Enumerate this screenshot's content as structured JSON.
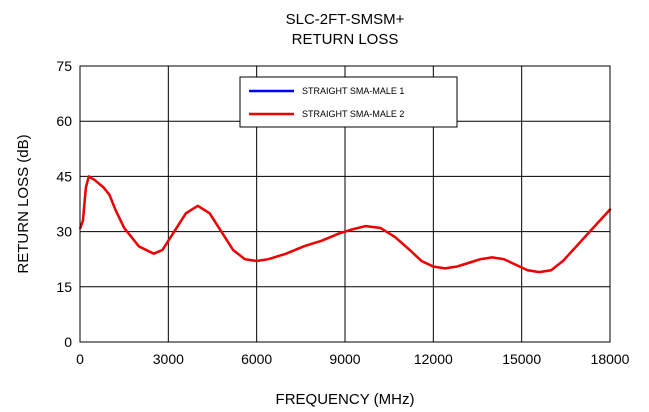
{
  "chart_data": {
    "type": "line",
    "title": "SLC-2FT-SMSM+",
    "subtitle": "RETURN LOSS",
    "xlabel": "FREQUENCY (MHz)",
    "ylabel": "RETURN LOSS (dB)",
    "xlim": [
      0,
      18000
    ],
    "ylim": [
      0,
      75
    ],
    "x_ticks": [
      "0",
      "3000",
      "6000",
      "9000",
      "12000",
      "15000",
      "18000"
    ],
    "y_ticks": [
      "0",
      "15",
      "30",
      "45",
      "60",
      "75"
    ],
    "grid": true,
    "legend_position": "top-center",
    "x": [
      10,
      100,
      200,
      300,
      500,
      800,
      1000,
      1200,
      1500,
      2000,
      2500,
      2800,
      3200,
      3600,
      4000,
      4400,
      4800,
      5200,
      5600,
      6000,
      6400,
      7000,
      7600,
      8200,
      8800,
      9200,
      9700,
      10200,
      10700,
      11200,
      11600,
      12000,
      12400,
      12800,
      13200,
      13600,
      14000,
      14400,
      14800,
      15200,
      15600,
      16000,
      16400,
      16800,
      17200,
      17600,
      18000
    ],
    "series": [
      {
        "name": "STRAIGHT SMA-MALE 1",
        "color": "#0000ff",
        "values": [
          31,
          33,
          42,
          45,
          44,
          42,
          40,
          36,
          31,
          26,
          24,
          25,
          30,
          35,
          37,
          35,
          30,
          25,
          22.5,
          22,
          22.5,
          24,
          26,
          27.5,
          29.5,
          30.5,
          31.5,
          31,
          28.5,
          25,
          22,
          20.5,
          20,
          20.5,
          21.5,
          22.5,
          23,
          22.5,
          21,
          19.5,
          19,
          19.5,
          22,
          25.5,
          29,
          32.5,
          36
        ]
      },
      {
        "name": "STRAIGHT SMA-MALE 2",
        "color": "#ee0000",
        "values": [
          31,
          33,
          42,
          45,
          44,
          42,
          40,
          36,
          31,
          26,
          24,
          25,
          30,
          35,
          37,
          35,
          30,
          25,
          22.5,
          22,
          22.5,
          24,
          26,
          27.5,
          29.5,
          30.5,
          31.5,
          31,
          28.5,
          25,
          22,
          20.5,
          20,
          20.5,
          21.5,
          22.5,
          23,
          22.5,
          21,
          19.5,
          19,
          19.5,
          22,
          25.5,
          29,
          32.5,
          36
        ]
      }
    ]
  }
}
